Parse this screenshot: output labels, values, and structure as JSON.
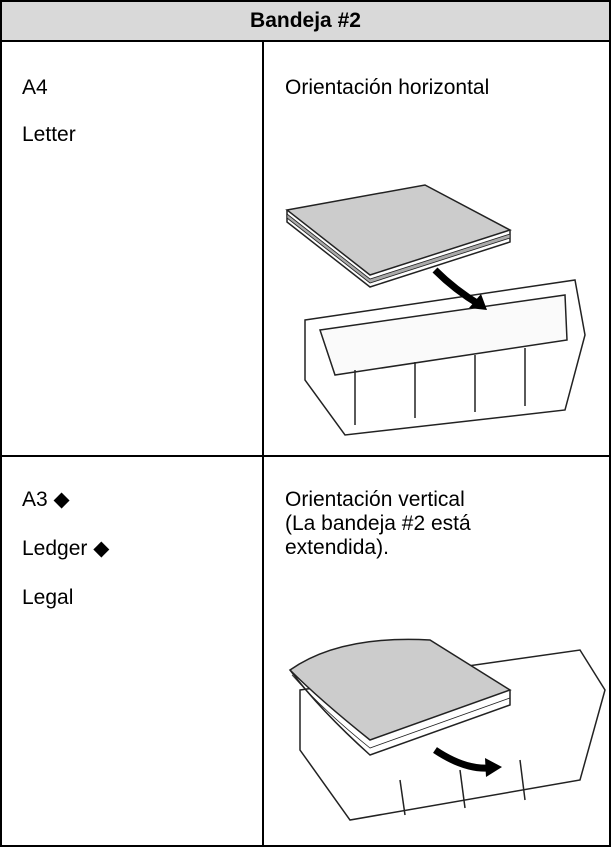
{
  "table": {
    "header": "Bandeja #2",
    "rows": [
      {
        "sizes": [
          "A4",
          "Letter"
        ],
        "orientation": "Orientación horizontal"
      },
      {
        "sizes": [
          "A3 ◆",
          "Ledger ◆",
          "Legal"
        ],
        "orientation": "Orientación vertical",
        "note": "(La bandeja #2 está extendida)."
      }
    ]
  }
}
